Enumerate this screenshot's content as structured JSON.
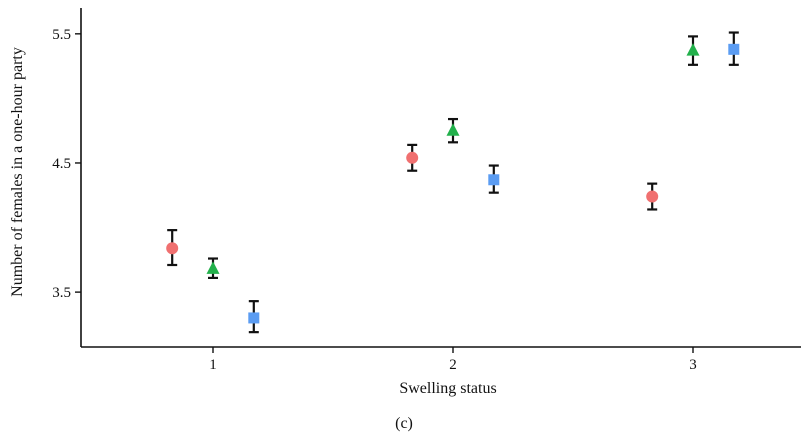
{
  "chart_data": {
    "type": "scatter",
    "title": "",
    "caption": "(c)",
    "xlabel": "Swelling status",
    "ylabel": "Number of females in a one-hour party",
    "x_ticks": [
      1,
      2,
      3
    ],
    "y_ticks": [
      3.5,
      4.5,
      5.5
    ],
    "xlim": [
      0.45,
      3.45
    ],
    "ylim": [
      3.075,
      5.7
    ],
    "grid": false,
    "legend": "none",
    "series": [
      {
        "marker": "circle",
        "color": "#f07070",
        "points": [
          {
            "x": 0.83,
            "y": 3.84,
            "low": 3.71,
            "high": 3.98
          },
          {
            "x": 1.83,
            "y": 4.54,
            "low": 4.44,
            "high": 4.64
          },
          {
            "x": 2.83,
            "y": 4.24,
            "low": 4.14,
            "high": 4.34
          }
        ]
      },
      {
        "marker": "triangle",
        "color": "#22b04b",
        "points": [
          {
            "x": 1.0,
            "y": 3.68,
            "low": 3.61,
            "high": 3.76
          },
          {
            "x": 2.0,
            "y": 4.75,
            "low": 4.66,
            "high": 4.84
          },
          {
            "x": 3.0,
            "y": 5.37,
            "low": 5.26,
            "high": 5.48
          }
        ]
      },
      {
        "marker": "square",
        "color": "#5b9cf2",
        "points": [
          {
            "x": 1.17,
            "y": 3.3,
            "low": 3.19,
            "high": 3.43
          },
          {
            "x": 2.17,
            "y": 4.37,
            "low": 4.27,
            "high": 4.48
          },
          {
            "x": 3.17,
            "y": 5.38,
            "low": 5.26,
            "high": 5.51
          }
        ]
      }
    ]
  }
}
